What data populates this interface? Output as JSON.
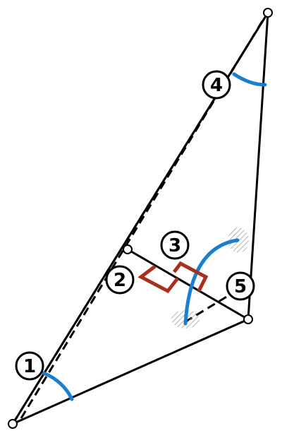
{
  "figure": {
    "type": "geometry-diagram",
    "description_labels": [
      "1",
      "2",
      "3",
      "4",
      "5"
    ]
  },
  "labels": {
    "angle1": "1",
    "angle2": "2",
    "angle3": "3",
    "angle4": "4",
    "angle5": "5"
  },
  "colors": {
    "line": "#000000",
    "angle_arc": "#1b7fd1",
    "right_angle": "#a7311e",
    "hatch": "#999999"
  }
}
